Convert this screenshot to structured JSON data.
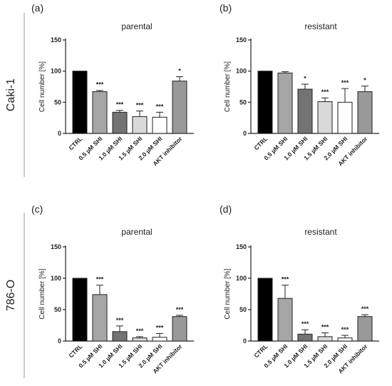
{
  "row_labels": [
    "Caki-1",
    "786-O"
  ],
  "chart_data": [
    {
      "type": "bar",
      "panel": "(a)",
      "title": "parental",
      "ylabel": "Cell number [%]",
      "xlabel": "",
      "ylim": [
        0,
        150
      ],
      "yticks": [
        0,
        50,
        100,
        150
      ],
      "categories": [
        "CTRL",
        "0.5 µM SHI",
        "1.0 µM SHI",
        "1.5 µM SHI",
        "2.0 µM SHI",
        "AKT inhibitor"
      ],
      "values": [
        100,
        67,
        34,
        27,
        26,
        84
      ],
      "errors": [
        0,
        2,
        3,
        9,
        8,
        7
      ],
      "significance": [
        "",
        "***",
        "***",
        "***",
        "***",
        "*"
      ],
      "colors": [
        "#000000",
        "#a6a6a6",
        "#737373",
        "#d9d9d9",
        "#ffffff",
        "#999999"
      ]
    },
    {
      "type": "bar",
      "panel": "(b)",
      "title": "resistant",
      "ylabel": "Cell number [%]",
      "xlabel": "",
      "ylim": [
        0,
        150
      ],
      "yticks": [
        0,
        50,
        100,
        150
      ],
      "categories": [
        "CTRL",
        "0.5 µM SHI",
        "1.0 µM SHI",
        "1.5 µM SHI",
        "2.0 µM SHI",
        "AKT inhibitor"
      ],
      "values": [
        100,
        97,
        71,
        51,
        50,
        67
      ],
      "errors": [
        0,
        2,
        8,
        6,
        22,
        9
      ],
      "significance": [
        "",
        "",
        "*",
        "***",
        "***",
        "*"
      ],
      "colors": [
        "#000000",
        "#a6a6a6",
        "#737373",
        "#d9d9d9",
        "#ffffff",
        "#999999"
      ]
    },
    {
      "type": "bar",
      "panel": "(c)",
      "title": "parental",
      "ylabel": "Cell number [%]",
      "xlabel": "",
      "ylim": [
        0,
        150
      ],
      "yticks": [
        0,
        50,
        100,
        150
      ],
      "categories": [
        "CTRL",
        "0.5 µM SHI",
        "1.0 µM SHI",
        "1.5 µM SHI",
        "2.0 µM SHI",
        "AKT inhibitor"
      ],
      "values": [
        100,
        74,
        15,
        5,
        6,
        39
      ],
      "errors": [
        0,
        15,
        9,
        2,
        6,
        2
      ],
      "significance": [
        "",
        "***",
        "***",
        "***",
        "***",
        "***"
      ],
      "colors": [
        "#000000",
        "#a6a6a6",
        "#737373",
        "#d9d9d9",
        "#ffffff",
        "#999999"
      ]
    },
    {
      "type": "bar",
      "panel": "(d)",
      "title": "resistant",
      "ylabel": "Cell number [%]",
      "xlabel": "",
      "ylim": [
        0,
        150
      ],
      "yticks": [
        0,
        50,
        100,
        150
      ],
      "categories": [
        "CTRL",
        "0.5 µM SHI",
        "1.0 µM SHI",
        "1.5 µM SHI",
        "2.0 µM SHI",
        "AKT inhibitor"
      ],
      "values": [
        100,
        68,
        11,
        7,
        5,
        39
      ],
      "errors": [
        0,
        21,
        7,
        6,
        4,
        3
      ],
      "significance": [
        "",
        "***",
        "***",
        "***",
        "***",
        "***"
      ],
      "colors": [
        "#000000",
        "#a6a6a6",
        "#737373",
        "#d9d9d9",
        "#ffffff",
        "#999999"
      ]
    }
  ]
}
